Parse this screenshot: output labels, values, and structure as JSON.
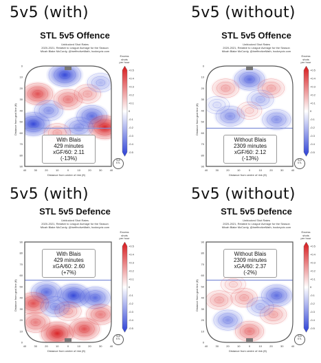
{
  "quadrants": [
    {
      "label": "5v5 (with)",
      "title": "STL 5v5 Offence",
      "subtitle_lines": [
        "Unblocked Shot Rates",
        "2020-2021, Relative to League Average for the Season",
        "Micah Blake McCurdy, @IneffectiveMath, hockeyviz.com"
      ],
      "info": [
        "With Blais",
        "429 minutes",
        "xGF/60: 2.11 (-13%)"
      ],
      "kind": "offence"
    },
    {
      "label": "5v5 (without)",
      "title": "STL 5v5 Offence",
      "subtitle_lines": [
        "Unblocked Shot Rates",
        "2020-2021, Relative to League Average for the Season",
        "Micah Blake McCurdy, @IneffectiveMath, hockeyviz.com"
      ],
      "info": [
        "Without Blais",
        "2309 minutes",
        "xGF/60: 2.12 (-13%)"
      ],
      "kind": "offence"
    },
    {
      "label": "5v5 (with)",
      "title": "STL 5v5 Defence",
      "subtitle_lines": [
        "Unblocked Shot Rates",
        "2020-2021, Relative to League Average for the Season",
        "Micah Blake McCurdy, @IneffectiveMath, hockeyviz.com"
      ],
      "info": [
        "With Blais",
        "429 minutes",
        "xGA/60: 2.60 (+7%)"
      ],
      "kind": "defence"
    },
    {
      "label": "5v5 (without)",
      "title": "STL 5v5 Defence",
      "subtitle_lines": [
        "Unblocked Shot Rates",
        "2020-2021, Relative to League Average for the Season",
        "Micah Blake McCurdy, @IneffectiveMath, hockeyviz.com"
      ],
      "info": [
        "Without Blais",
        "2309 minutes",
        "xGA/60: 2.37 (-2%)"
      ],
      "kind": "defence"
    }
  ],
  "axes": {
    "ylabel": "Distance from goal line (ft)",
    "xlabel": "Distance from centre of rink (ft)",
    "xticks": [
      "40",
      "30",
      "20",
      "10",
      "0",
      "10",
      "20",
      "30",
      "40"
    ],
    "yticks_offence": [
      "0",
      "10",
      "20",
      "30",
      "40",
      "50",
      "60",
      "70",
      "80",
      "90"
    ],
    "yticks_defence": [
      "90",
      "80",
      "70",
      "60",
      "50",
      "40",
      "30",
      "20",
      "10",
      "0"
    ]
  },
  "colorbar": {
    "title_lines": [
      "Excess",
      "shots",
      "per hour"
    ],
    "ticks": [
      "+0.5",
      "+0.4",
      "+0.3",
      "+0.2",
      "+0.1",
      "0",
      "-0.1",
      "-0.2",
      "-0.3",
      "-0.4",
      "-0.5"
    ],
    "high_color": "#d7191c",
    "low_color": "#2b3fd6"
  },
  "badge_text": [
    "5v5",
    "STL"
  ],
  "chart_data": [
    {
      "type": "heatmap",
      "title": "STL 5v5 Offence",
      "subtitle": "Unblocked Shot Rates; 2020-2021, Relative to League Average for the Season",
      "xlabel": "Distance from centre of rink (ft)",
      "ylabel": "Distance from goal line (ft)",
      "xlim": [
        -40,
        40
      ],
      "ylim": [
        0,
        90
      ],
      "colorbar_range": [
        -0.5,
        0.5
      ],
      "annotation": "With Blais · 429 minutes · xGF/60: 2.11 (-13%)",
      "blobs": [
        {
          "x": -3,
          "y": 8,
          "value": -0.5
        },
        {
          "x": -28,
          "y": 25,
          "value": 0.4
        },
        {
          "x": -32,
          "y": 52,
          "value": -0.5
        },
        {
          "x": -18,
          "y": 40,
          "value": -0.3
        },
        {
          "x": 0,
          "y": 30,
          "value": 0.3
        },
        {
          "x": 18,
          "y": 25,
          "value": 0.2
        },
        {
          "x": 22,
          "y": 45,
          "value": -0.4
        },
        {
          "x": 34,
          "y": 55,
          "value": 0.5
        },
        {
          "x": 10,
          "y": 55,
          "value": -0.3
        },
        {
          "x": -10,
          "y": 60,
          "value": 0.2
        },
        {
          "x": 30,
          "y": 15,
          "value": -0.2
        }
      ]
    },
    {
      "type": "heatmap",
      "title": "STL 5v5 Offence",
      "subtitle": "Unblocked Shot Rates; 2020-2021, Relative to League Average for the Season",
      "xlabel": "Distance from centre of rink (ft)",
      "ylabel": "Distance from goal line (ft)",
      "xlim": [
        -40,
        40
      ],
      "ylim": [
        0,
        90
      ],
      "colorbar_range": [
        -0.5,
        0.5
      ],
      "annotation": "Without Blais · 2309 minutes · xGF/60: 2.12 (-13%)",
      "blobs": [
        {
          "x": 0,
          "y": 12,
          "value": -0.4
        },
        {
          "x": -22,
          "y": 20,
          "value": 0.2
        },
        {
          "x": 20,
          "y": 20,
          "value": 0.2
        },
        {
          "x": -18,
          "y": 45,
          "value": -0.3
        },
        {
          "x": 25,
          "y": 48,
          "value": -0.3
        },
        {
          "x": 0,
          "y": 40,
          "value": 0.1
        },
        {
          "x": -30,
          "y": 35,
          "value": -0.1
        },
        {
          "x": 10,
          "y": 30,
          "value": -0.2
        }
      ]
    },
    {
      "type": "heatmap",
      "title": "STL 5v5 Defence",
      "subtitle": "Unblocked Shot Rates; 2020-2021, Relative to League Average for the Season",
      "xlabel": "Distance from centre of rink (ft)",
      "ylabel": "Distance from goal line (ft)",
      "xlim": [
        -40,
        40
      ],
      "ylim": [
        90,
        0
      ],
      "colorbar_range": [
        -0.5,
        0.5
      ],
      "annotation": "With Blais · 429 minutes · xGA/60: 2.60 (+7%)",
      "blobs": [
        {
          "x": -10,
          "y": 8,
          "value": 0.5
        },
        {
          "x": 15,
          "y": 12,
          "value": 0.4
        },
        {
          "x": -30,
          "y": 18,
          "value": 0.3
        },
        {
          "x": -20,
          "y": 45,
          "value": -0.4
        },
        {
          "x": 5,
          "y": 42,
          "value": -0.5
        },
        {
          "x": 25,
          "y": 40,
          "value": -0.4
        },
        {
          "x": -32,
          "y": 35,
          "value": 0.4
        },
        {
          "x": 30,
          "y": 25,
          "value": 0.3
        },
        {
          "x": 0,
          "y": 28,
          "value": 0.2
        },
        {
          "x": -12,
          "y": 32,
          "value": -0.3
        }
      ]
    },
    {
      "type": "heatmap",
      "title": "STL 5v5 Defence",
      "subtitle": "Unblocked Shot Rates; 2020-2021, Relative to League Average for the Season",
      "xlabel": "Distance from centre of rink (ft)",
      "ylabel": "Distance from goal line (ft)",
      "xlim": [
        -40,
        40
      ],
      "ylim": [
        90,
        0
      ],
      "colorbar_range": [
        -0.5,
        0.5
      ],
      "annotation": "Without Blais · 2309 minutes · xGA/60: 2.37 (-2%)",
      "blobs": [
        {
          "x": 0,
          "y": 10,
          "value": 0.3
        },
        {
          "x": -20,
          "y": 20,
          "value": -0.3
        },
        {
          "x": 22,
          "y": 25,
          "value": 0.2
        },
        {
          "x": 25,
          "y": 42,
          "value": -0.4
        },
        {
          "x": -5,
          "y": 40,
          "value": 0.2
        },
        {
          "x": -28,
          "y": 38,
          "value": 0.2
        },
        {
          "x": 10,
          "y": 32,
          "value": -0.2
        },
        {
          "x": -15,
          "y": 52,
          "value": 0.1
        }
      ]
    }
  ]
}
